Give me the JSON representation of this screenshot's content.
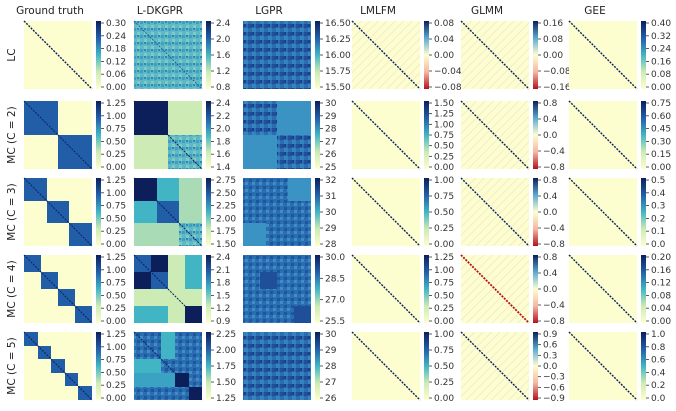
{
  "chart_data": {
    "type": "heatmap",
    "columns": [
      "Ground truth",
      "L-DKGPR",
      "LGPR",
      "LMLFM",
      "GLMM",
      "GEE"
    ],
    "rows": [
      {
        "label": "LC",
        "cells": [
          {
            "pattern": "identity",
            "cmap": "ygb",
            "ticks": [
              "0.30",
              "0.24",
              "0.18",
              "0.12",
              "0.06",
              "0.00"
            ]
          },
          {
            "pattern": "noise",
            "cmap": "ygb",
            "ticks": [
              "2.4",
              "2.0",
              "1.6",
              "1.2",
              "0.8"
            ]
          },
          {
            "pattern": "noise_dark",
            "cmap": "ygb",
            "ticks": [
              "16.50",
              "16.25",
              "16.00",
              "15.75",
              "15.50"
            ]
          },
          {
            "pattern": "diag_div",
            "cmap": "div",
            "ticks": [
              "0.08",
              "0.04",
              "0.00",
              "−0.04",
              "−0.08"
            ]
          },
          {
            "pattern": "diag_div",
            "cmap": "div",
            "ticks": [
              "0.16",
              "0.08",
              "0.00",
              "−0.08",
              "−0.16"
            ]
          },
          {
            "pattern": "identity",
            "cmap": "ygb",
            "ticks": [
              "0.40",
              "0.32",
              "0.24",
              "0.16",
              "0.08",
              "0.00"
            ]
          }
        ]
      },
      {
        "label": "MC (C = 2)",
        "cells": [
          {
            "pattern": "blocks2",
            "cmap": "ygb",
            "ticks": [
              "1.25",
              "1.00",
              "0.75",
              "0.50",
              "0.25",
              "0.00"
            ]
          },
          {
            "pattern": "ldk2",
            "cmap": "ygb",
            "ticks": [
              "2.4",
              "2.2",
              "2.0",
              "1.8",
              "1.6",
              "1.4"
            ]
          },
          {
            "pattern": "lgpr2",
            "cmap": "ygb",
            "ticks": [
              "30",
              "29",
              "28",
              "27",
              "26",
              "25"
            ]
          },
          {
            "pattern": "identity",
            "cmap": "ygb",
            "ticks": [
              "1.50",
              "1.25",
              "1.00",
              "0.75",
              "0.50",
              "0.25",
              "0.00"
            ]
          },
          {
            "pattern": "diag_div",
            "cmap": "div",
            "ticks": [
              "0.8",
              "0.4",
              "0.0",
              "−0.4",
              "−0.8"
            ]
          },
          {
            "pattern": "identity",
            "cmap": "ygb",
            "ticks": [
              "0.75",
              "0.60",
              "0.45",
              "0.30",
              "0.15",
              "0.00"
            ]
          }
        ]
      },
      {
        "label": "MC (C = 3)",
        "cells": [
          {
            "pattern": "blocks3",
            "cmap": "ygb",
            "ticks": [
              "1.25",
              "1.00",
              "0.75",
              "0.50",
              "0.25",
              "0.00"
            ]
          },
          {
            "pattern": "ldk3",
            "cmap": "ygb",
            "ticks": [
              "2.75",
              "2.50",
              "2.25",
              "2.00",
              "1.75",
              "1.50"
            ]
          },
          {
            "pattern": "lgpr3",
            "cmap": "ygb",
            "ticks": [
              "32",
              "31",
              "30",
              "29",
              "28"
            ]
          },
          {
            "pattern": "identity",
            "cmap": "ygb",
            "ticks": [
              "1.00",
              "0.75",
              "0.50",
              "0.25",
              "0.00"
            ]
          },
          {
            "pattern": "diag_div",
            "cmap": "div",
            "ticks": [
              "0.8",
              "0.4",
              "0.0",
              "−0.4",
              "−0.8"
            ]
          },
          {
            "pattern": "identity",
            "cmap": "ygb",
            "ticks": [
              "0.5",
              "0.4",
              "0.3",
              "0.2",
              "0.1",
              "0.0"
            ]
          }
        ]
      },
      {
        "label": "MC (C = 4)",
        "cells": [
          {
            "pattern": "blocks4",
            "cmap": "ygb",
            "ticks": [
              "1.25",
              "1.00",
              "0.75",
              "0.50",
              "0.25",
              "0.00"
            ]
          },
          {
            "pattern": "ldk4",
            "cmap": "ygb",
            "ticks": [
              "2.4",
              "2.1",
              "1.8",
              "1.5",
              "1.2",
              "0.9"
            ]
          },
          {
            "pattern": "lgpr4",
            "cmap": "ygb",
            "ticks": [
              "30.0",
              "28.5",
              "27.0",
              "25.5"
            ]
          },
          {
            "pattern": "identity",
            "cmap": "ygb",
            "ticks": [
              "1.25",
              "1.00",
              "0.75",
              "0.50",
              "0.25",
              "0.00"
            ]
          },
          {
            "pattern": "diag_div_red",
            "cmap": "div",
            "ticks": [
              "0.8",
              "0.4",
              "0.0",
              "−0.4",
              "−0.8"
            ]
          },
          {
            "pattern": "identity",
            "cmap": "ygb",
            "ticks": [
              "0.20",
              "0.16",
              "0.12",
              "0.08",
              "0.04",
              "0.00"
            ]
          }
        ]
      },
      {
        "label": "MC (C = 5)",
        "cells": [
          {
            "pattern": "blocks5",
            "cmap": "ygb",
            "ticks": [
              "1.25",
              "1.00",
              "0.75",
              "0.50",
              "0.25",
              "0.00"
            ]
          },
          {
            "pattern": "ldk5",
            "cmap": "ygb",
            "ticks": [
              "2.25",
              "2.00",
              "1.75",
              "1.50",
              "1.25"
            ]
          },
          {
            "pattern": "lgpr5",
            "cmap": "ygb",
            "ticks": [
              "30",
              "29",
              "28",
              "27",
              "26"
            ]
          },
          {
            "pattern": "identity",
            "cmap": "ygb",
            "ticks": [
              "1.00",
              "0.75",
              "0.50",
              "0.25",
              "0.00"
            ]
          },
          {
            "pattern": "diag_div",
            "cmap": "div",
            "ticks": [
              "0.9",
              "0.6",
              "0.3",
              "0.0",
              "−0.3",
              "−0.6",
              "−0.9"
            ]
          },
          {
            "pattern": "identity",
            "cmap": "ygb",
            "ticks": [
              "1.0",
              "0.8",
              "0.6",
              "0.4",
              "0.2",
              "0.0"
            ]
          }
        ]
      }
    ],
    "colors": {
      "light": "#fdfed0",
      "pale": "#cdebb4",
      "teal": "#42b5c4",
      "blue": "#225ea8",
      "navy": "#0c1f5a",
      "red": "#b4101f",
      "white": "#f7f7f7"
    }
  }
}
